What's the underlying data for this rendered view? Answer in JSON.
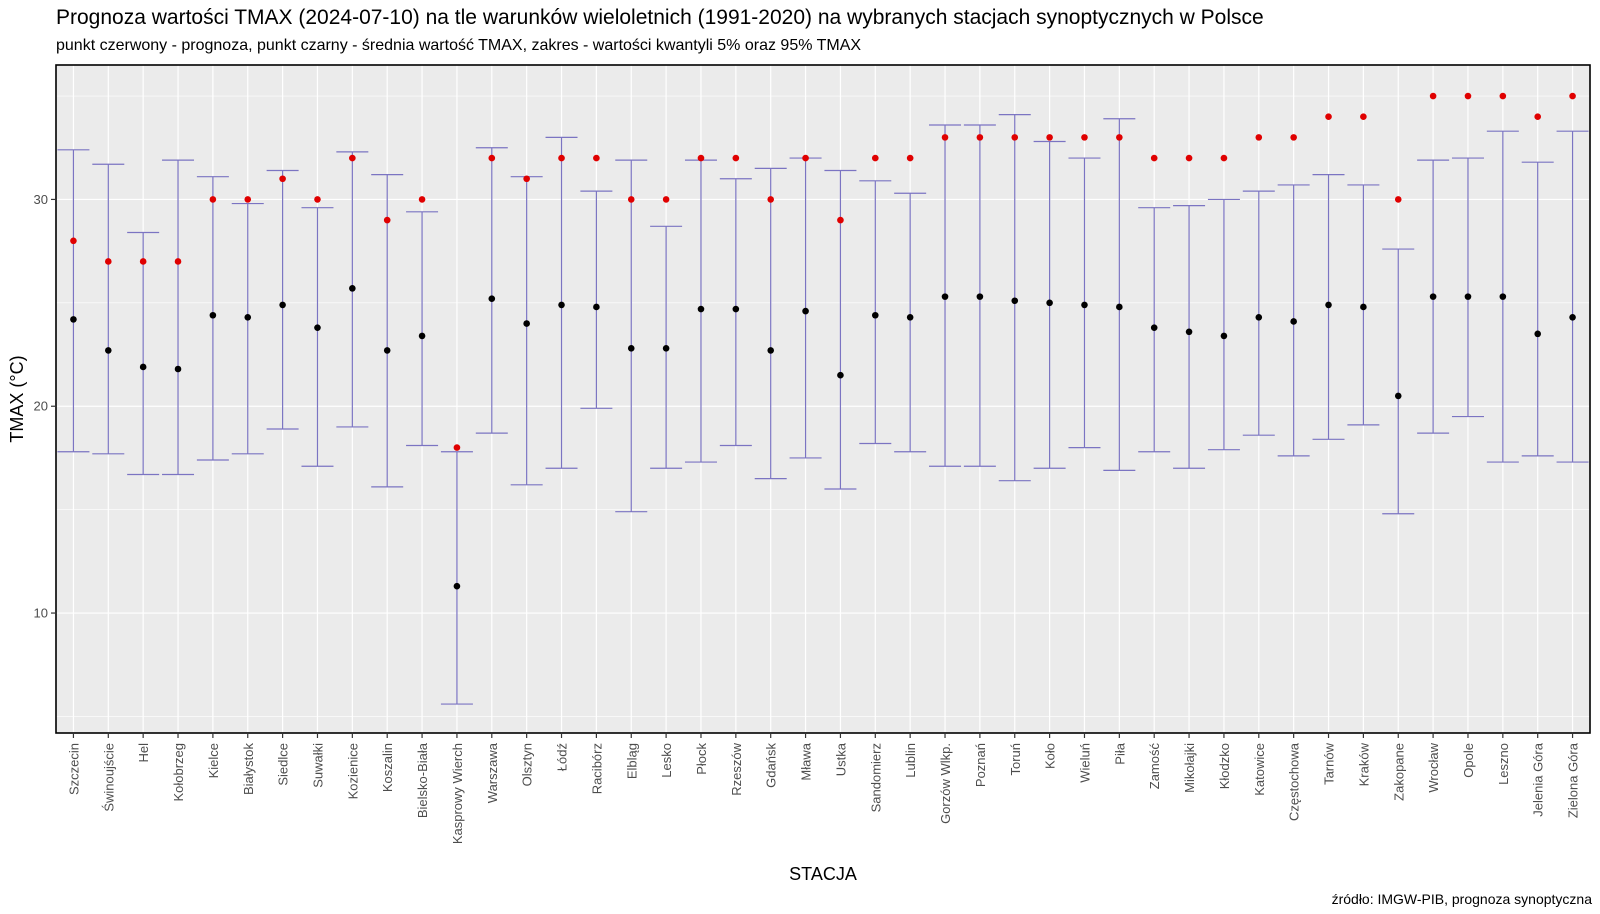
{
  "title": "Prognoza wartości TMAX (2024-07-10) na tle warunków wieloletnich (1991-2020) na wybranych stacjach synoptycznych w Polsce",
  "subtitle": "punkt czerwony - prognoza, punkt czarny - średnia wartość TMAX, zakres - wartości kwantyli 5% oraz 95% TMAX",
  "source": "źródło: IMGW-PIB, prognoza synoptyczna",
  "colors": {
    "panel_bg": "#EBEBEB",
    "grid": "#FFFFFF",
    "errorbar": "#7B74C2",
    "forecast": "#E00000",
    "mean": "#000000"
  },
  "chart_data": {
    "type": "errorbar",
    "xlabel": "STACJA",
    "ylabel": "TMAX (°C)",
    "ylim": [
      4.2,
      36.5
    ],
    "y_ticks": [
      10,
      20,
      30
    ],
    "grid": true,
    "categories": [
      "Szczecin",
      "Świnoujście",
      "Hel",
      "Kołobrzeg",
      "Kielce",
      "Białystok",
      "Siedlce",
      "Suwałki",
      "Kozienice",
      "Koszalin",
      "Bielsko-Biała",
      "Kasprowy Wierch",
      "Warszawa",
      "Olsztyn",
      "Łódź",
      "Racibórz",
      "Elbląg",
      "Lesko",
      "Płock",
      "Rzeszów",
      "Gdańsk",
      "Mława",
      "Ustka",
      "Sandomierz",
      "Lublin",
      "Gorzów Wlkp.",
      "Poznań",
      "Toruń",
      "Koło",
      "Wieluń",
      "Piła",
      "Zamość",
      "Mikołajki",
      "Kłodzko",
      "Katowice",
      "Częstochowa",
      "Tarnów",
      "Kraków",
      "Zakopane",
      "Wrocław",
      "Opole",
      "Leszno",
      "Jelenia Góra",
      "Zielona Góra"
    ],
    "series": [
      {
        "name": "prognoza",
        "values": [
          28,
          27,
          27,
          27,
          30,
          30,
          31,
          30,
          32,
          29,
          30,
          18,
          32,
          31,
          32,
          32,
          30,
          30,
          32,
          32,
          30,
          32,
          29,
          32,
          32,
          33,
          33,
          33,
          33,
          33,
          33,
          32,
          32,
          32,
          33,
          33,
          34,
          34,
          30,
          35,
          35,
          35,
          34,
          35
        ]
      },
      {
        "name": "średnia wartość TMAX",
        "values": [
          24.2,
          22.7,
          21.9,
          21.8,
          24.4,
          24.3,
          24.9,
          23.8,
          25.7,
          22.7,
          23.4,
          11.3,
          25.2,
          24.0,
          24.9,
          24.8,
          22.8,
          22.8,
          24.7,
          24.7,
          22.7,
          24.6,
          21.5,
          24.4,
          24.3,
          25.3,
          25.3,
          25.1,
          25.0,
          24.9,
          24.8,
          23.8,
          23.6,
          23.4,
          24.3,
          24.1,
          24.9,
          24.8,
          20.5,
          25.3,
          25.3,
          25.3,
          23.5,
          24.3
        ]
      },
      {
        "name": "kwantyl 5%",
        "values": [
          17.8,
          17.7,
          16.7,
          16.7,
          17.4,
          17.7,
          18.9,
          17.1,
          19.0,
          16.1,
          18.1,
          5.6,
          18.7,
          16.2,
          17.0,
          19.9,
          14.9,
          17.0,
          17.3,
          18.1,
          16.5,
          17.5,
          16.0,
          18.2,
          17.8,
          17.1,
          17.1,
          16.4,
          17.0,
          18.0,
          16.9,
          17.8,
          17.0,
          17.9,
          18.6,
          17.6,
          18.4,
          19.1,
          14.8,
          18.7,
          19.5,
          17.3,
          17.6,
          17.3
        ]
      },
      {
        "name": "kwantyl 95%",
        "values": [
          32.4,
          31.7,
          28.4,
          31.9,
          31.1,
          29.8,
          31.4,
          29.6,
          32.3,
          31.2,
          29.4,
          17.8,
          32.5,
          31.1,
          33.0,
          30.4,
          31.9,
          28.7,
          31.9,
          31.0,
          31.5,
          32.0,
          31.4,
          30.9,
          30.3,
          33.6,
          33.6,
          34.1,
          32.8,
          32.0,
          33.9,
          29.6,
          29.7,
          30.0,
          30.4,
          30.7,
          31.2,
          30.7,
          27.6,
          31.9,
          32.0,
          33.3,
          31.8,
          33.3
        ]
      }
    ]
  }
}
